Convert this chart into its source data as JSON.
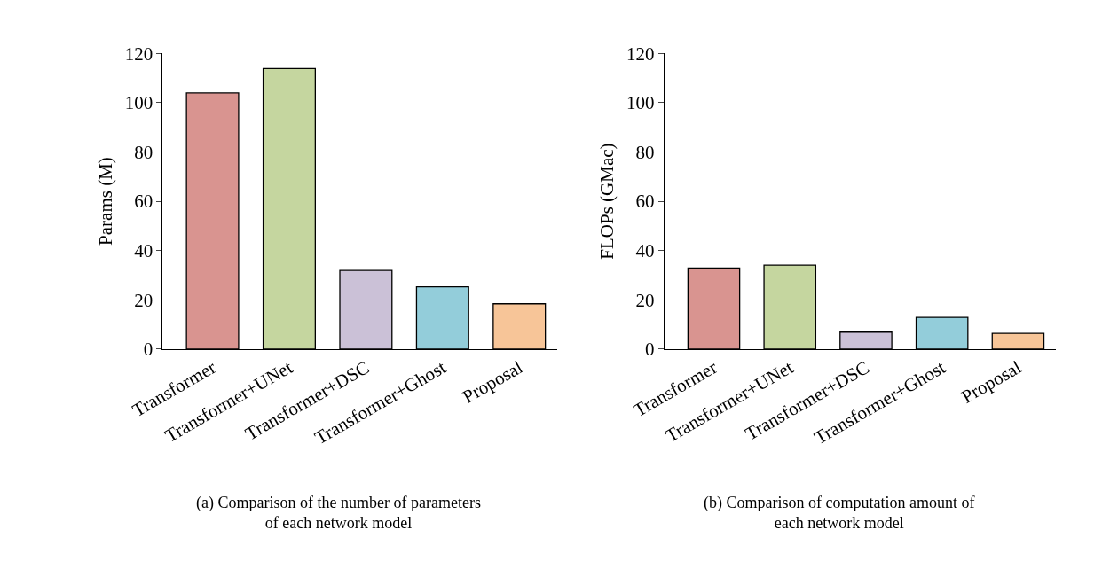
{
  "chart_data": [
    {
      "type": "bar",
      "categories": [
        "Transformer",
        "Transformer+UNet",
        "Transformer+DSC",
        "Transformer+Ghost",
        "Proposal"
      ],
      "values": [
        103.9,
        113.8,
        31.9,
        25.3,
        18.4
      ],
      "colors": [
        "#d99490",
        "#c5d69f",
        "#cbc1d7",
        "#93cdda",
        "#f7c598"
      ],
      "ylabel": "Params (M)",
      "ylim": [
        0,
        120
      ],
      "yticks": [
        0,
        20,
        40,
        60,
        80,
        100,
        120
      ],
      "annotations": [
        "(a) Comparison of the number of parameters\nof each network model"
      ]
    },
    {
      "type": "bar",
      "categories": [
        "Transformer",
        "Transformer+UNet",
        "Transformer+DSC",
        "Transformer+Ghost",
        "Proposal"
      ],
      "values": [
        32.9,
        34.1,
        6.9,
        12.9,
        6.4
      ],
      "colors": [
        "#d99490",
        "#c5d69f",
        "#cbc1d7",
        "#93cdda",
        "#f7c598"
      ],
      "ylabel": "FLOPs (GMac)",
      "ylim": [
        0,
        120
      ],
      "yticks": [
        0,
        20,
        40,
        60,
        80,
        100,
        120
      ],
      "annotations": [
        "(b) Comparison of computation amount of\neach network model"
      ]
    }
  ]
}
